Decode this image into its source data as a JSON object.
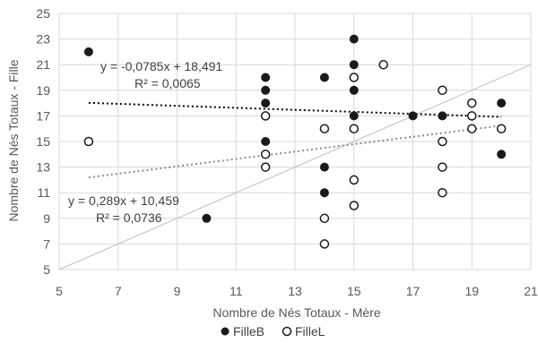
{
  "chart_data": {
    "type": "scatter",
    "xlabel": "Nombre de Nés Totaux - Mère",
    "ylabel": "Nombre de Nés Totaux - Fille",
    "xlim": [
      5,
      21
    ],
    "ylim": [
      5,
      25
    ],
    "xticks": [
      "5",
      "7",
      "9",
      "11",
      "13",
      "15",
      "17",
      "19",
      "21"
    ],
    "yticks": [
      "5",
      "7",
      "9",
      "11",
      "13",
      "15",
      "17",
      "19",
      "21",
      "23",
      "25"
    ],
    "grid": true,
    "legend_position": "bottom",
    "series": [
      {
        "name": "FilleB",
        "marker": "filled-circle",
        "color": "#1a1a1a",
        "points": [
          [
            6,
            22
          ],
          [
            10,
            9
          ],
          [
            12,
            20
          ],
          [
            12,
            19
          ],
          [
            12,
            18
          ],
          [
            12,
            15
          ],
          [
            14,
            20
          ],
          [
            14,
            13
          ],
          [
            14,
            11
          ],
          [
            15,
            23
          ],
          [
            15,
            21
          ],
          [
            15,
            19
          ],
          [
            15,
            17
          ],
          [
            17,
            17
          ],
          [
            18,
            17
          ],
          [
            20,
            18
          ],
          [
            20,
            14
          ]
        ]
      },
      {
        "name": "FilleL",
        "marker": "open-circle",
        "color": "#1a1a1a",
        "points": [
          [
            6,
            15
          ],
          [
            12,
            17
          ],
          [
            12,
            14
          ],
          [
            12,
            13
          ],
          [
            14,
            16
          ],
          [
            14,
            9
          ],
          [
            14,
            7
          ],
          [
            15,
            20
          ],
          [
            15,
            16
          ],
          [
            15,
            12
          ],
          [
            15,
            10
          ],
          [
            16,
            21
          ],
          [
            18,
            19
          ],
          [
            18,
            15
          ],
          [
            18,
            13
          ],
          [
            18,
            11
          ],
          [
            19,
            18
          ],
          [
            19,
            17
          ],
          [
            19,
            16
          ],
          [
            20,
            16
          ]
        ]
      }
    ],
    "trendlines": [
      {
        "series": "FilleB",
        "slope": -0.0785,
        "intercept": 18.491,
        "x_range": [
          6,
          20
        ],
        "style": "dotted",
        "color": "#000000",
        "equation": "y = -0,0785x + 18,491",
        "r2": "R² = 0,0065"
      },
      {
        "series": "FilleL",
        "slope": 0.289,
        "intercept": 10.459,
        "x_range": [
          6,
          20
        ],
        "style": "dotted",
        "color": "#8c8c8c",
        "equation": "y = 0,289x + 10,459",
        "r2": "R² = 0,0736"
      }
    ],
    "reference_line": {
      "x": [
        5,
        21
      ],
      "y": [
        5,
        21
      ],
      "color": "#bfbfbf"
    }
  }
}
